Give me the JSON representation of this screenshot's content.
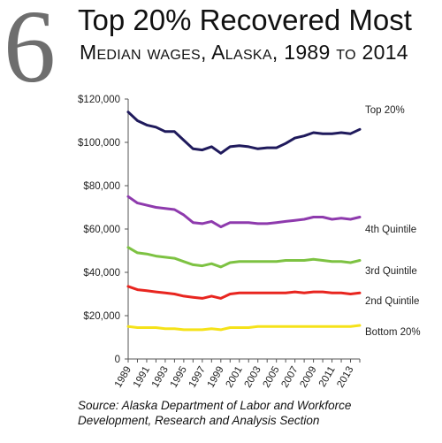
{
  "figure_number": "6",
  "title": "Top 20% Recovered Most",
  "subtitle": "Median wages, Alaska, 1989 to 2014",
  "source": {
    "line1": "Source: Alaska Department of Labor and Workforce",
    "line2": "Development, Research and Analysis Section"
  },
  "chart_data": {
    "type": "line",
    "title": "Median wages, Alaska, 1989 to 2014",
    "xlabel": "",
    "ylabel": "",
    "x": [
      1989,
      1990,
      1991,
      1992,
      1993,
      1994,
      1995,
      1996,
      1997,
      1998,
      1999,
      2000,
      2001,
      2002,
      2003,
      2004,
      2005,
      2006,
      2007,
      2008,
      2009,
      2010,
      2011,
      2012,
      2013,
      2014
    ],
    "x_tick_labels": [
      "1989",
      "1991",
      "1993",
      "1995",
      "1997",
      "1999",
      "2001",
      "2003",
      "2005",
      "2007",
      "2009",
      "2011",
      "2013"
    ],
    "ylim": [
      0,
      120000
    ],
    "y_tick_labels": [
      "0",
      "$20,000",
      "$40,000",
      "$60,000",
      "$80,000",
      "$100,000",
      "$120,000"
    ],
    "grid": false,
    "legend": "direct labels at right end of lines",
    "series": [
      {
        "name": "Top 20%",
        "color": "#1f1a5c",
        "values": [
          114000,
          110000,
          108000,
          107000,
          105000,
          105000,
          101000,
          97000,
          96500,
          98000,
          95000,
          98000,
          98500,
          98000,
          97000,
          97500,
          97500,
          99500,
          102000,
          103000,
          104500,
          104000,
          104000,
          104500,
          104000,
          106000
        ]
      },
      {
        "name": "4th Quintile",
        "color": "#8e3aad",
        "values": [
          75000,
          72000,
          71000,
          70000,
          69500,
          69000,
          66500,
          63000,
          62500,
          63500,
          61000,
          63000,
          63000,
          63000,
          62500,
          62500,
          63000,
          63500,
          64000,
          64500,
          65500,
          65500,
          64500,
          65000,
          64500,
          65500
        ]
      },
      {
        "name": "3rd Quintile",
        "color": "#7dc242",
        "values": [
          51500,
          49000,
          48500,
          47500,
          47000,
          46500,
          45000,
          43500,
          43000,
          44000,
          42500,
          44500,
          45000,
          45000,
          45000,
          45000,
          45000,
          45500,
          45500,
          45500,
          46000,
          45500,
          45000,
          45000,
          44500,
          45500
        ]
      },
      {
        "name": "2nd Quintile",
        "color": "#e8251f",
        "values": [
          33500,
          32000,
          31500,
          31000,
          30500,
          30000,
          29000,
          28500,
          28000,
          29000,
          28000,
          30000,
          30500,
          30500,
          30500,
          30500,
          30500,
          30500,
          31000,
          30500,
          31000,
          31000,
          30500,
          30500,
          30000,
          30500
        ]
      },
      {
        "name": "Bottom 20%",
        "color": "#f5e219",
        "values": [
          15000,
          14500,
          14500,
          14500,
          14000,
          14000,
          13500,
          13500,
          13500,
          14000,
          13500,
          14500,
          14500,
          14500,
          15000,
          15000,
          15000,
          15000,
          15000,
          15000,
          15000,
          15000,
          15000,
          15000,
          15000,
          15500
        ]
      }
    ]
  }
}
